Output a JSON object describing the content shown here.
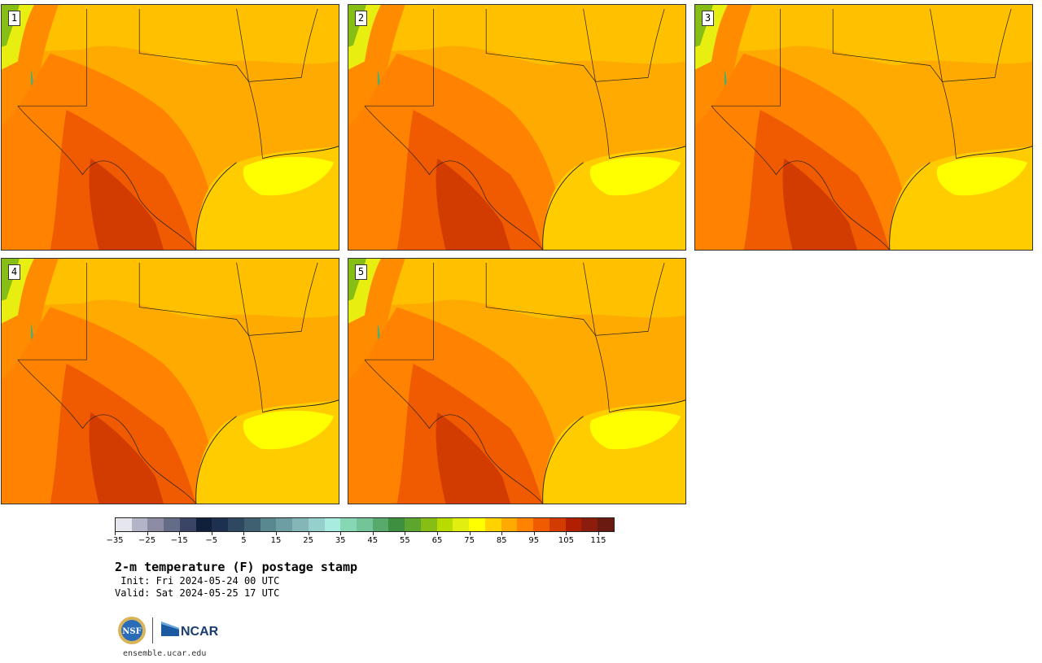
{
  "panels": [
    {
      "label": "1"
    },
    {
      "label": "2"
    },
    {
      "label": "3"
    },
    {
      "label": "4"
    },
    {
      "label": "5"
    }
  ],
  "colorbar": {
    "colors": [
      "#e6e6ee",
      "#b4b4c8",
      "#8c8ca4",
      "#646c88",
      "#3a4464",
      "#10203a",
      "#1e3050",
      "#2e4860",
      "#3e6070",
      "#5a8890",
      "#6c9ea4",
      "#84b6b8",
      "#96d0cc",
      "#a8ece0",
      "#86d8b4",
      "#74c49a",
      "#58aa6c",
      "#3e9040",
      "#5ca630",
      "#86be16",
      "#b8dc00",
      "#e2ee10",
      "#ffff00",
      "#ffd200",
      "#ffaa00",
      "#ff8200",
      "#f05a00",
      "#d23c00",
      "#b02000",
      "#8c1c0c",
      "#6a1a10"
    ],
    "ticks": [
      "−35",
      "−25",
      "−15",
      "−5",
      "5",
      "15",
      "25",
      "35",
      "45",
      "55",
      "65",
      "75",
      "85",
      "95",
      "105",
      "115"
    ]
  },
  "title": "2-m temperature (F) postage stamp",
  "init": " Init: Fri 2024-05-24 00 UTC",
  "valid": "Valid: Sat 2024-05-25 17 UTC",
  "logos": {
    "nsf": "NSF",
    "ncar": "NCAR"
  },
  "website": "ensemble.ucar.edu"
}
